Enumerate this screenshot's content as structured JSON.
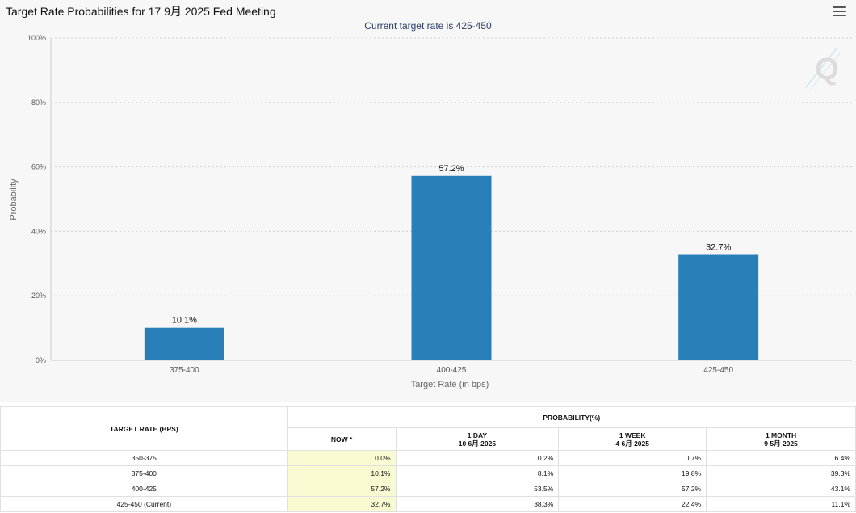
{
  "title": "Target Rate Probabilities for 17 9月 2025 Fed Meeting",
  "subtitle": "Current target rate is 425-450",
  "icons": {
    "menu": "hamburger-menu-icon",
    "watermark": "q-logo-watermark-icon"
  },
  "colors": {
    "bar": "#2980b9",
    "now_column": "#fafad2",
    "background": "#f7f7f7"
  },
  "chart_data": {
    "type": "bar",
    "title": "Target Rate Probabilities for 17 9月 2025 Fed Meeting",
    "subtitle": "Current target rate is 425-450",
    "categories": [
      "375-400",
      "400-425",
      "425-450"
    ],
    "values": [
      10.1,
      57.2,
      32.7
    ],
    "data_labels": [
      "10.1%",
      "57.2%",
      "32.7%"
    ],
    "xlabel": "Target Rate (in bps)",
    "ylabel": "Probability",
    "ylim": [
      0,
      100
    ],
    "yticks": [
      "0%",
      "20%",
      "40%",
      "60%",
      "80%",
      "100%"
    ],
    "grid": true,
    "legend": "none"
  },
  "table": {
    "rate_header": "TARGET RATE (BPS)",
    "prob_header": "PROBABILITY(%)",
    "columns": [
      {
        "label": "NOW *",
        "date": ""
      },
      {
        "label": "1 DAY",
        "date": "10 6月 2025"
      },
      {
        "label": "1 WEEK",
        "date": "4 6月 2025"
      },
      {
        "label": "1 MONTH",
        "date": "9 5月 2025"
      }
    ],
    "rows": [
      {
        "rate": "350-375",
        "values": [
          "0.0%",
          "0.2%",
          "0.7%",
          "6.4%"
        ]
      },
      {
        "rate": "375-400",
        "values": [
          "10.1%",
          "8.1%",
          "19.8%",
          "39.3%"
        ]
      },
      {
        "rate": "400-425",
        "values": [
          "57.2%",
          "53.5%",
          "57.2%",
          "43.1%"
        ]
      },
      {
        "rate": "425-450 (Current)",
        "values": [
          "32.7%",
          "38.3%",
          "22.4%",
          "11.1%"
        ]
      }
    ]
  }
}
